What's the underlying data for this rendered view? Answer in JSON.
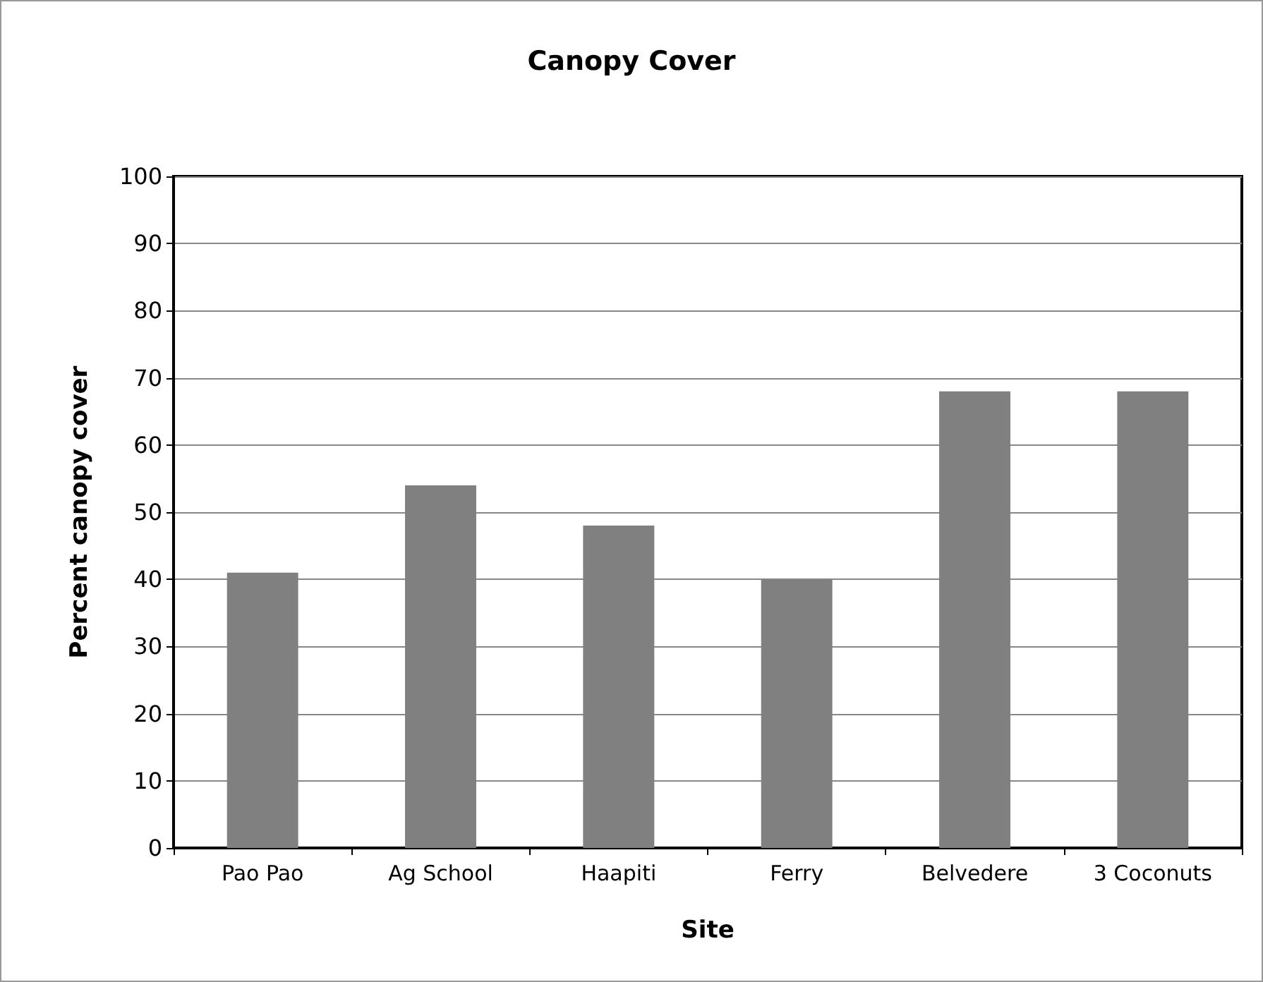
{
  "chart_data": {
    "type": "bar",
    "title": "Canopy Cover",
    "xlabel": "Site",
    "ylabel": "Percent canopy cover",
    "categories": [
      "Pao Pao",
      "Ag School",
      "Haapiti",
      "Ferry",
      "Belvedere",
      "3 Coconuts"
    ],
    "values": [
      41,
      54,
      48,
      40,
      68,
      68
    ],
    "color": "#808080",
    "ylim": [
      0,
      100
    ],
    "yticks": [
      0,
      10,
      20,
      30,
      40,
      50,
      60,
      70,
      80,
      90,
      100
    ],
    "grid": "y"
  }
}
